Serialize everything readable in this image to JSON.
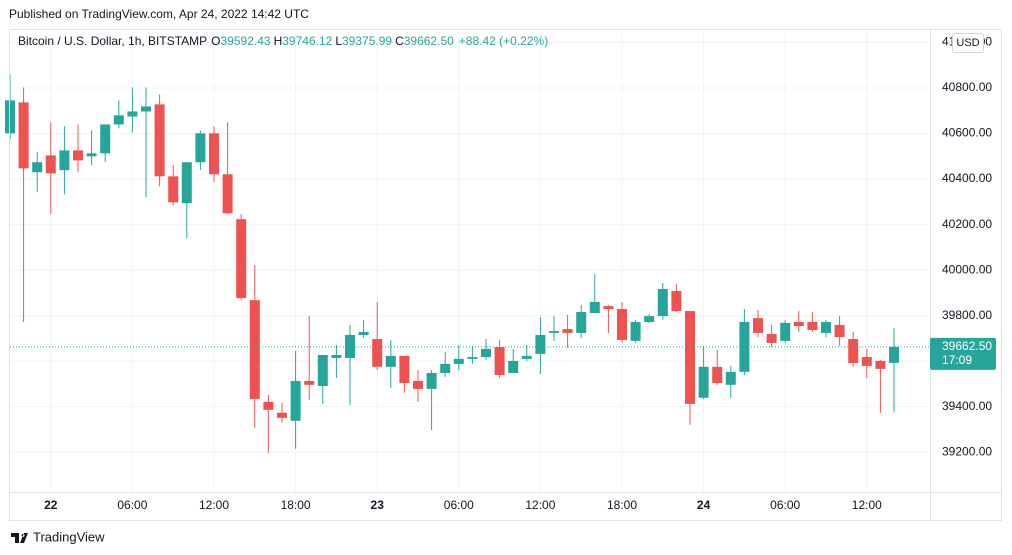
{
  "published": "Published on TradingView.com, Apr 24, 2022 14:42 UTC",
  "footer": "TradingView",
  "chart_data": {
    "type": "candlestick",
    "title": "Bitcoin / U.S. Dollar, 1h, BITSTAMP",
    "ohlc_legend": [
      {
        "key": "O",
        "value": "39592.43"
      },
      {
        "key": "H",
        "value": "39746.12"
      },
      {
        "key": "L",
        "value": "39375.99"
      },
      {
        "key": "C",
        "value": "39662.50"
      }
    ],
    "change": "+88.42 (+0.22%)",
    "currency": "USD",
    "categories": [
      null,
      null,
      null,
      "22",
      null,
      null,
      null,
      null,
      null,
      "06:00",
      null,
      null,
      null,
      null,
      null,
      "12:00",
      null,
      null,
      null,
      null,
      null,
      "18:00",
      null,
      null,
      null,
      null,
      null,
      "23",
      null,
      null,
      null,
      null,
      null,
      "06:00",
      null,
      null,
      null,
      null,
      null,
      "12:00",
      null,
      null,
      null,
      null,
      null,
      "18:00",
      null,
      null,
      null,
      null,
      null,
      "24",
      null,
      null,
      null,
      null,
      null,
      "06:00",
      null,
      null,
      null,
      null,
      null,
      "12:00",
      null,
      null
    ],
    "open": [
      40601,
      40737,
      40430,
      40504,
      40439,
      40526,
      40500,
      40513,
      40640,
      40675,
      40697,
      40728,
      40412,
      40294,
      40474,
      40601,
      40421,
      40224,
      39868,
      39421,
      39373,
      39338,
      39513,
      39491,
      39614,
      39614,
      39715,
      39697,
      39575,
      39623,
      39513,
      39478,
      39548,
      39588,
      39610,
      39618,
      39662,
      39548,
      39610,
      39632,
      39724,
      39741,
      39724,
      39811,
      39842,
      39829,
      39689,
      39772,
      39798,
      39908,
      39820,
      39439,
      39575,
      39496,
      39553,
      39789,
      39719,
      39689,
      39772,
      39772,
      39724,
      39759,
      39697,
      39618,
      39601,
      39592.43
    ],
    "high": [
      40860,
      40803,
      40518,
      40649,
      40632,
      40640,
      40614,
      40640,
      40746,
      40803,
      40803,
      40772,
      40461,
      40474,
      40614,
      40632,
      40649,
      40246,
      40022,
      39452,
      39417,
      39645,
      39798,
      39627,
      39671,
      39759,
      39781,
      39860,
      39693,
      39623,
      39561,
      39561,
      39640,
      39671,
      39667,
      39697,
      39693,
      39654,
      39671,
      39794,
      39798,
      39803,
      39846,
      39982,
      39846,
      39860,
      39781,
      39807,
      39943,
      39939,
      39820,
      39667,
      39649,
      39579,
      39829,
      39825,
      39759,
      39781,
      39820,
      39816,
      39781,
      39798,
      39728,
      39654,
      39605,
      39746.12
    ],
    "low": [
      40570,
      39772,
      40342,
      40246,
      40333,
      40430,
      40461,
      40474,
      40623,
      40605,
      40320,
      40368,
      40285,
      40140,
      40439,
      40386,
      40246,
      39868,
      39307,
      39197,
      39329,
      39215,
      39430,
      39412,
      39526,
      39408,
      39702,
      39561,
      39482,
      39461,
      39421,
      39298,
      39531,
      39561,
      39588,
      39605,
      39526,
      39548,
      39601,
      39544,
      39689,
      39658,
      39702,
      39811,
      39724,
      39680,
      39680,
      39768,
      39781,
      39816,
      39320,
      39434,
      39496,
      39439,
      39539,
      39706,
      39662,
      39680,
      39728,
      39728,
      39706,
      39667,
      39575,
      39526,
      39373,
      39375.99
    ],
    "close": [
      40746,
      40447,
      40474,
      40425,
      40526,
      40482,
      40513,
      40640,
      40680,
      40697,
      40719,
      40412,
      40298,
      40474,
      40601,
      40421,
      40250,
      39877,
      39434,
      39386,
      39351,
      39513,
      39496,
      39627,
      39627,
      39715,
      39728,
      39575,
      39623,
      39504,
      39478,
      39548,
      39588,
      39610,
      39618,
      39654,
      39539,
      39601,
      39623,
      39715,
      39732,
      39724,
      39816,
      39860,
      39829,
      39693,
      39772,
      39798,
      39917,
      39820,
      39412,
      39575,
      39504,
      39553,
      39772,
      39724,
      39680,
      39768,
      39754,
      39737,
      39772,
      39706,
      39592,
      39579,
      39566,
      39662.5
    ],
    "up_color": "#26a69a",
    "down_color": "#ef5350",
    "last_price": {
      "value": 39662.5,
      "label": "39662.50"
    },
    "countdown": "17:09",
    "ylim": [
      39025,
      41055
    ],
    "yticks": [
      {
        "value": 39200,
        "label": "39200.00"
      },
      {
        "value": 39400,
        "label": "39400.00"
      },
      {
        "value": 39600,
        "label": "39600.00"
      },
      {
        "value": 39800,
        "label": "39800.00"
      },
      {
        "value": 40000,
        "label": "40000.00"
      },
      {
        "value": 40200,
        "label": "40200.00"
      },
      {
        "value": 40400,
        "label": "40400.00"
      },
      {
        "value": 40600,
        "label": "40600.00"
      },
      {
        "value": 40800,
        "label": "40800.00"
      },
      {
        "value": 41000,
        "label": "41000.00"
      }
    ],
    "grid": true
  }
}
